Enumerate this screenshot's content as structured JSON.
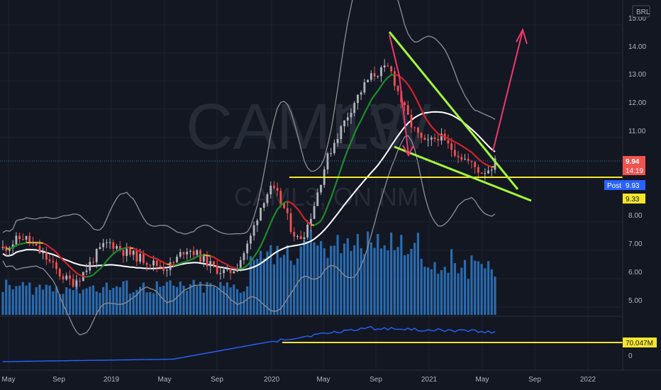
{
  "currency_badge": "BRL",
  "watermark": {
    "symbol": "CAML3",
    "interval": "1W",
    "subtitle": "CAML3, ON NM"
  },
  "price_axis": {
    "ticks": [
      "15.00",
      "14.00",
      "13.00",
      "12.00",
      "11.00",
      "8.00",
      "7.00",
      "6.00",
      "5.00"
    ]
  },
  "price_tags": {
    "last_price": "9.94",
    "countdown": "14:19",
    "post_label": "Post",
    "post_price": "9.93",
    "support_price": "9.33"
  },
  "lower_pane": {
    "ticks": [
      "0"
    ],
    "level_label": "70.047M"
  },
  "time_axis": {
    "ticks": [
      "May",
      "Sep",
      "2019",
      "May",
      "Sep",
      "2020",
      "May",
      "Sep",
      "2021",
      "May",
      "Sep",
      "2022"
    ]
  },
  "colors": {
    "background": "#131722",
    "bull": "#26a69a",
    "bear": "#ef5350",
    "volume": "#2a6bb0",
    "ma_fast_up": "#1e8c2a",
    "ma_fast_down": "#d3222a",
    "ma_fast_neutral": "#d1b23e",
    "bollinger": "#8e8f94",
    "ma_slow": "#ffffff",
    "support_line": "#f5e52c",
    "wedge": "#a4f53c",
    "arrow": "#f0386b",
    "obv": "#2962ff"
  },
  "chart_data": {
    "type": "candlestick",
    "frequency": "weekly",
    "y_range_main": [
      4.5,
      15.2
    ],
    "support_level": 9.33,
    "candles_close_sampled": [
      6.9,
      7.0,
      7.2,
      7.3,
      7.1,
      6.8,
      6.6,
      6.3,
      6.0,
      5.8,
      5.7,
      5.9,
      6.2,
      6.6,
      6.9,
      7.1,
      7.0,
      6.8,
      6.7,
      6.6,
      6.5,
      6.4,
      6.3,
      6.2,
      6.3,
      6.6,
      6.9,
      6.8,
      6.6,
      6.4,
      6.2,
      6.1,
      6.0,
      6.2,
      6.6,
      7.1,
      7.9,
      8.6,
      9.0,
      8.8,
      8.3,
      7.6,
      7.2,
      7.5,
      8.2,
      9.1,
      10.0,
      10.6,
      11.1,
      11.6,
      12.1,
      12.5,
      12.9,
      13.1,
      13.2,
      13.3,
      12.6,
      11.9,
      11.3,
      10.9,
      10.6,
      10.7,
      10.9,
      10.6,
      10.4,
      10.2,
      10.0,
      9.8,
      9.6,
      9.7,
      9.94
    ],
    "wedge_upper": [
      [
        14.45,
        "Oct 2020"
      ],
      [
        9.4,
        "Jun 2021"
      ]
    ],
    "wedge_lower": [
      [
        10.3,
        "Oct 2020"
      ],
      [
        8.8,
        "Jul 2021"
      ]
    ],
    "projection_target": 14.8
  }
}
